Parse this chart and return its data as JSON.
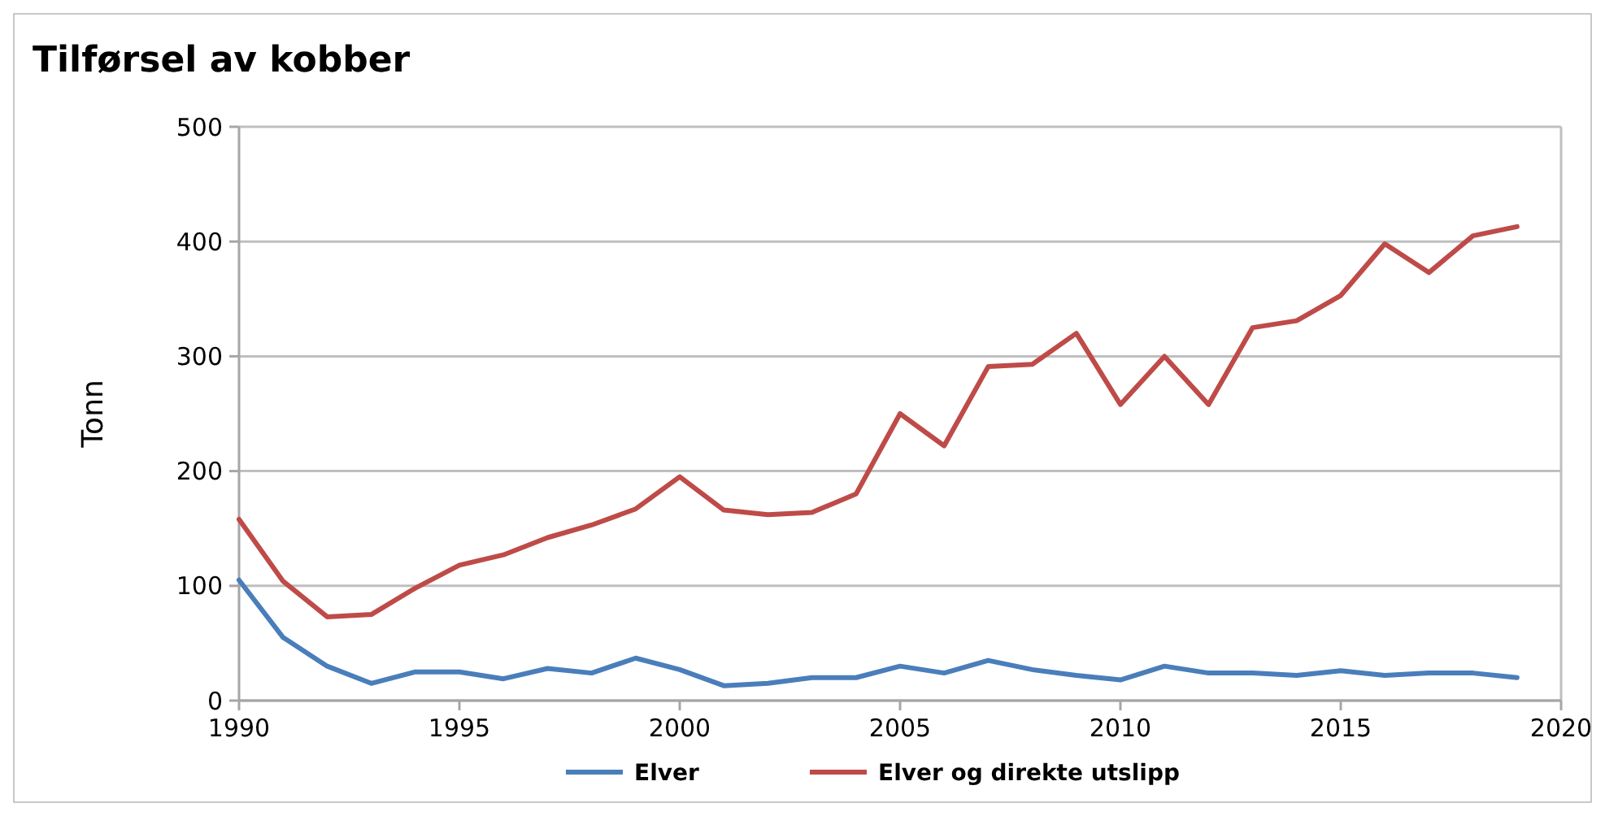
{
  "chart_data": {
    "type": "line",
    "title": "Tilførsel av kobber",
    "ylabel": "Tonn",
    "x": [
      1990,
      1991,
      1992,
      1993,
      1994,
      1995,
      1996,
      1997,
      1998,
      1999,
      2000,
      2001,
      2002,
      2003,
      2004,
      2005,
      2006,
      2007,
      2008,
      2009,
      2010,
      2011,
      2012,
      2013,
      2014,
      2015,
      2016,
      2017,
      2018,
      2019
    ],
    "series": [
      {
        "name": "Elver",
        "color": "#4a7ebb",
        "values": [
          105,
          55,
          30,
          15,
          25,
          25,
          19,
          28,
          24,
          37,
          27,
          13,
          15,
          20,
          20,
          30,
          24,
          35,
          27,
          22,
          18,
          30,
          24,
          24,
          22,
          26,
          22,
          24,
          24,
          20
        ]
      },
      {
        "name": "Elver og direkte utslipp",
        "color": "#be4b48",
        "values": [
          158,
          104,
          73,
          75,
          98,
          118,
          127,
          142,
          153,
          167,
          195,
          166,
          162,
          164,
          180,
          250,
          222,
          291,
          293,
          320,
          258,
          300,
          258,
          325,
          331,
          353,
          398,
          373,
          405,
          413
        ]
      }
    ],
    "xlim": [
      1990,
      2020
    ],
    "xticks": [
      1990,
      1995,
      2000,
      2005,
      2010,
      2015,
      2020
    ],
    "ylim": [
      0,
      500
    ],
    "yticks": [
      0,
      100,
      200,
      300,
      400,
      500
    ],
    "grid": "y",
    "legend": "bottom",
    "marker": "none",
    "line_style": "solid"
  }
}
